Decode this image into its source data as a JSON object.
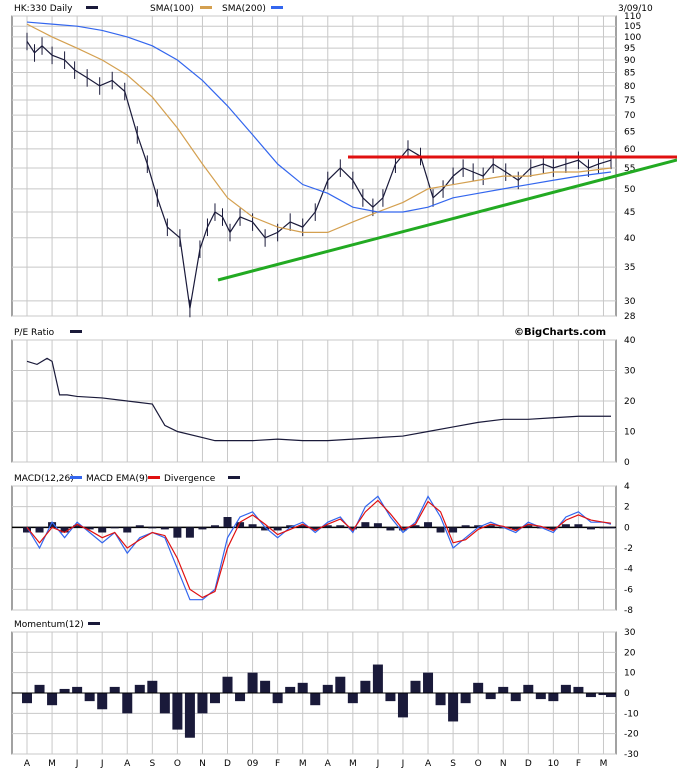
{
  "header": {
    "symbol_label": "HK:330 Daily",
    "sma100_label": "SMA(100)",
    "sma200_label": "SMA(200)",
    "date_label": "3/09/10"
  },
  "brand": "©BigCharts.com",
  "colors": {
    "price": "#1a1a3a",
    "sma100": "#d4a050",
    "sma200": "#3366ee",
    "trend_red": "#e01010",
    "trend_green": "#22aa22",
    "macd": "#3366ee",
    "signal": "#e01010",
    "bars": "#1a1a3a",
    "grid": "#c8c8c8"
  },
  "x_axis_labels": [
    "A",
    "M",
    "J",
    "J",
    "A",
    "S",
    "O",
    "N",
    "D",
    "09",
    "F",
    "M",
    "A",
    "M",
    "J",
    "J",
    "A",
    "S",
    "O",
    "N",
    "D",
    "10",
    "F",
    "M"
  ],
  "chart_data": [
    {
      "type": "line",
      "panel": "price",
      "title": "HK:330 Daily",
      "scale": "log",
      "ylim": [
        28,
        110
      ],
      "yticks": [
        28,
        30,
        35,
        40,
        45,
        50,
        55,
        60,
        65,
        70,
        75,
        80,
        85,
        90,
        95,
        100,
        105,
        110
      ],
      "series": [
        {
          "name": "HK:330 Daily",
          "t": [
            0,
            0.3,
            0.6,
            1.0,
            1.5,
            1.9,
            2.4,
            2.9,
            3.4,
            3.9,
            4.4,
            4.8,
            5.2,
            5.6,
            6.1,
            6.5,
            6.9,
            7.2,
            7.5,
            7.8,
            8.1,
            8.5,
            9.0,
            9.5,
            10.0,
            10.5,
            11.0,
            11.5,
            12.0,
            12.5,
            13.0,
            13.4,
            13.8,
            14.2,
            14.7,
            15.2,
            15.7,
            16.2,
            16.6,
            17.0,
            17.4,
            17.8,
            18.2,
            18.6,
            19.1,
            19.6,
            20.1,
            20.6,
            21.0,
            21.5,
            22.0,
            22.4,
            22.8,
            23.3
          ],
          "values": [
            98,
            93,
            96,
            92,
            90,
            86,
            83,
            80,
            82,
            78,
            64,
            56,
            48,
            42,
            40,
            29,
            38,
            42,
            45,
            44,
            41,
            44,
            43,
            40,
            41,
            43,
            42,
            45,
            52,
            55,
            52,
            48,
            46,
            48,
            56,
            60,
            58,
            48,
            50,
            53,
            55,
            54,
            53,
            56,
            54,
            52,
            55,
            56,
            55,
            56,
            57,
            55,
            56,
            57
          ]
        },
        {
          "name": "SMA(100)",
          "t": [
            0,
            1.0,
            2.0,
            3.0,
            4.0,
            5.0,
            6.0,
            7.0,
            8.0,
            9.0,
            10.0,
            11.0,
            12.0,
            13.0,
            14.0,
            15.0,
            16.0,
            17.0,
            18.0,
            19.0,
            20.0,
            21.0,
            22.0,
            23.3
          ],
          "values": [
            106,
            100,
            95,
            90,
            84,
            76,
            66,
            56,
            48,
            44,
            42,
            41,
            41,
            43,
            45,
            47,
            50,
            51,
            52,
            53,
            53,
            54,
            54,
            55
          ]
        },
        {
          "name": "SMA(200)",
          "t": [
            0,
            1.0,
            2.0,
            3.0,
            4.0,
            5.0,
            6.0,
            7.0,
            8.0,
            9.0,
            10.0,
            11.0,
            12.0,
            13.0,
            14.0,
            15.0,
            16.0,
            17.0,
            18.0,
            19.0,
            20.0,
            21.0,
            22.0,
            23.3
          ],
          "values": [
            107,
            106,
            105,
            103,
            100,
            96,
            90,
            82,
            73,
            64,
            56,
            51,
            49,
            46,
            45,
            45,
            46,
            48,
            49,
            50,
            51,
            52,
            53,
            54
          ]
        }
      ]
    },
    {
      "type": "line",
      "panel": "pe",
      "title": "P/E Ratio",
      "ylim": [
        0,
        40
      ],
      "yticks": [
        0,
        10,
        20,
        30,
        40
      ],
      "series": [
        {
          "name": "P/E Ratio",
          "t": [
            0,
            0.4,
            0.8,
            1.0,
            1.3,
            1.6,
            2.0,
            3.0,
            4.0,
            5.0,
            5.5,
            6.0,
            7.0,
            7.5,
            8.0,
            9.0,
            10.0,
            11.0,
            12.0,
            13.0,
            14.0,
            15.0,
            16.0,
            17.0,
            18.0,
            19.0,
            20.0,
            21.0,
            22.0,
            23.3
          ],
          "values": [
            33,
            32,
            34,
            33,
            22,
            22,
            21.5,
            21,
            20,
            19,
            12,
            10,
            8,
            7,
            7,
            7,
            7.5,
            7,
            7,
            7.5,
            8,
            8.5,
            10,
            11.5,
            13,
            14,
            14,
            14.5,
            15,
            15
          ]
        }
      ]
    },
    {
      "type": "line",
      "panel": "macd",
      "title": "MACD(12,26)",
      "ylim": [
        -8,
        4
      ],
      "yticks": [
        -8,
        -6,
        -4,
        -2,
        0,
        2,
        4
      ],
      "series": [
        {
          "name": "MACD(12,26)",
          "t": [
            0,
            0.5,
            1.0,
            1.5,
            2.0,
            2.5,
            3.0,
            3.5,
            4.0,
            4.5,
            5.0,
            5.5,
            6.0,
            6.5,
            7.0,
            7.5,
            8.0,
            8.5,
            9.0,
            9.5,
            10.0,
            10.5,
            11.0,
            11.5,
            12.0,
            12.5,
            13.0,
            13.5,
            14.0,
            14.5,
            15.0,
            15.5,
            16.0,
            16.5,
            17.0,
            17.5,
            18.0,
            18.5,
            19.0,
            19.5,
            20.0,
            20.5,
            21.0,
            21.5,
            22.0,
            22.5,
            23.0,
            23.3
          ],
          "values": [
            0,
            -2,
            0.5,
            -1,
            0.5,
            -0.5,
            -1.5,
            -0.5,
            -2.5,
            -1,
            -0.5,
            -1,
            -4,
            -7,
            -7,
            -6,
            -1,
            1,
            1.5,
            0,
            -1,
            0,
            0.5,
            -0.5,
            0.5,
            1,
            -0.5,
            2,
            3,
            1,
            -0.5,
            0.5,
            3,
            1,
            -2,
            -1,
            0,
            0.5,
            0,
            -0.5,
            0.5,
            0,
            -0.5,
            1,
            1.5,
            0.5,
            0.5,
            0.3
          ]
        },
        {
          "name": "MACD EMA(9)",
          "t": [
            0,
            0.5,
            1.0,
            1.5,
            2.0,
            2.5,
            3.0,
            3.5,
            4.0,
            4.5,
            5.0,
            5.5,
            6.0,
            6.5,
            7.0,
            7.5,
            8.0,
            8.5,
            9.0,
            9.5,
            10.0,
            10.5,
            11.0,
            11.5,
            12.0,
            12.5,
            13.0,
            13.5,
            14.0,
            14.5,
            15.0,
            15.5,
            16.0,
            16.5,
            17.0,
            17.5,
            18.0,
            18.5,
            19.0,
            19.5,
            20.0,
            20.5,
            21.0,
            21.5,
            22.0,
            22.5,
            23.0,
            23.3
          ],
          "values": [
            0,
            -1.5,
            0,
            -0.5,
            0.3,
            -0.3,
            -1,
            -0.5,
            -2,
            -1.2,
            -0.5,
            -0.8,
            -3,
            -6,
            -6.8,
            -6.2,
            -2,
            0.5,
            1.2,
            0.3,
            -0.7,
            -0.2,
            0.3,
            -0.3,
            0.3,
            0.8,
            -0.3,
            1.5,
            2.6,
            1.3,
            -0.2,
            0.3,
            2.5,
            1.5,
            -1.5,
            -1.2,
            -0.2,
            0.3,
            0.1,
            -0.3,
            0.3,
            0.1,
            -0.3,
            0.7,
            1.2,
            0.7,
            0.5,
            0.4
          ]
        },
        {
          "name": "Divergence",
          "t": [
            0,
            0.5,
            1.0,
            1.5,
            2.0,
            2.5,
            3.0,
            3.5,
            4.0,
            4.5,
            5.0,
            5.5,
            6.0,
            6.5,
            7.0,
            7.5,
            8.0,
            8.5,
            9.0,
            9.5,
            10.0,
            10.5,
            11.0,
            11.5,
            12.0,
            12.5,
            13.0,
            13.5,
            14.0,
            14.5,
            15.0,
            15.5,
            16.0,
            16.5,
            17.0,
            17.5,
            18.0,
            18.5,
            19.0,
            19.5,
            20.0,
            20.5,
            21.0,
            21.5,
            22.0,
            22.5,
            23.0,
            23.3
          ],
          "values": [
            -0.5,
            -0.5,
            0.5,
            -0.5,
            0.2,
            -0.2,
            -0.5,
            0,
            -0.5,
            0.2,
            0,
            -0.2,
            -1,
            -1,
            -0.2,
            0.2,
            1,
            0.5,
            0.3,
            -0.3,
            -0.3,
            0.2,
            0.2,
            -0.2,
            0.2,
            0.2,
            -0.2,
            0.5,
            0.4,
            -0.3,
            -0.3,
            0.2,
            0.5,
            -0.5,
            -0.5,
            0.2,
            0.2,
            0.2,
            -0.1,
            -0.2,
            0.2,
            -0.1,
            -0.2,
            0.3,
            0.3,
            -0.2,
            0,
            -0.1
          ]
        }
      ]
    },
    {
      "type": "bar",
      "panel": "momentum",
      "title": "Momentum(12)",
      "ylim": [
        -30,
        30
      ],
      "yticks": [
        -30,
        -20,
        -10,
        0,
        10,
        20,
        30
      ],
      "series": [
        {
          "name": "Momentum(12)",
          "t": [
            0,
            0.5,
            1.0,
            1.5,
            2.0,
            2.5,
            3.0,
            3.5,
            4.0,
            4.5,
            5.0,
            5.5,
            6.0,
            6.5,
            7.0,
            7.5,
            8.0,
            8.5,
            9.0,
            9.5,
            10.0,
            10.5,
            11.0,
            11.5,
            12.0,
            12.5,
            13.0,
            13.5,
            14.0,
            14.5,
            15.0,
            15.5,
            16.0,
            16.5,
            17.0,
            17.5,
            18.0,
            18.5,
            19.0,
            19.5,
            20.0,
            20.5,
            21.0,
            21.5,
            22.0,
            22.5,
            23.0,
            23.3
          ],
          "values": [
            -5,
            4,
            -6,
            2,
            3,
            -4,
            -8,
            3,
            -10,
            4,
            6,
            -10,
            -18,
            -22,
            -10,
            -5,
            8,
            -4,
            10,
            6,
            -5,
            3,
            5,
            -6,
            4,
            8,
            -5,
            6,
            14,
            -4,
            -12,
            6,
            10,
            -6,
            -14,
            -5,
            5,
            -3,
            3,
            -4,
            4,
            -3,
            -4,
            4,
            3,
            -2,
            -1,
            -2
          ]
        }
      ]
    }
  ]
}
